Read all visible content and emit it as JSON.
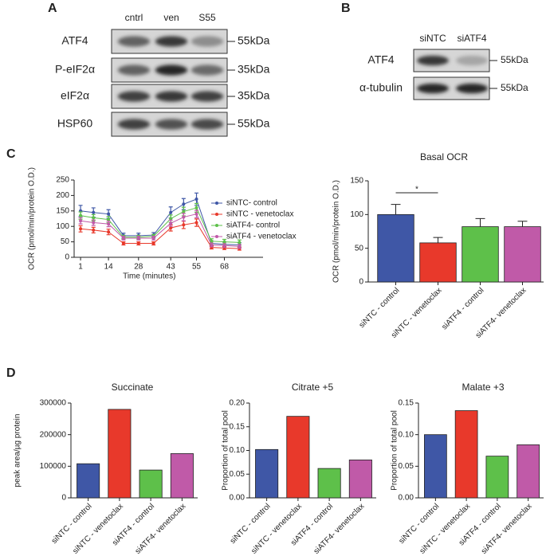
{
  "figure": {
    "panels": [
      "A",
      "B",
      "C",
      "D"
    ]
  },
  "blot_a": {
    "columns": [
      "cntrl",
      "ven",
      "S55"
    ],
    "rows": [
      {
        "label": "ATF4",
        "size": "55kDa"
      },
      {
        "label": "P-eIF2α",
        "size": "35kDa"
      },
      {
        "label": "eIF2α",
        "size": "35kDa"
      },
      {
        "label": "HSP60",
        "size": "55kDa"
      }
    ]
  },
  "blot_b": {
    "columns": [
      "siNTC",
      "siATF4"
    ],
    "rows": [
      {
        "label": "ATF4",
        "size": "55kDa"
      },
      {
        "label": "α-tubulin",
        "size": "55kDa"
      }
    ]
  },
  "chart_data": [
    {
      "type": "line",
      "xlabel": "Time (minutes)",
      "ylabel": "OCR (pmol/min/protein O.D.)",
      "x": [
        1,
        7,
        14,
        21,
        28,
        35,
        43,
        49,
        55,
        62,
        68,
        75
      ],
      "xlim": [
        -2,
        86
      ],
      "xticks": [
        1,
        14,
        28,
        43,
        55,
        68
      ],
      "ylim": [
        0,
        250
      ],
      "yticks": [
        0,
        50,
        100,
        150,
        200,
        250
      ],
      "legend": "upper right",
      "series": [
        {
          "name": "siNTC- control",
          "color": "#3f57a6",
          "values": [
            150,
            145,
            140,
            70,
            70,
            72,
            145,
            172,
            188,
            45,
            42,
            40
          ],
          "errors": [
            18,
            15,
            14,
            8,
            8,
            8,
            18,
            18,
            20,
            8,
            7,
            7
          ]
        },
        {
          "name": "siNTC - venetoclax",
          "color": "#e8392b",
          "values": [
            92,
            88,
            82,
            45,
            45,
            45,
            95,
            105,
            112,
            32,
            30,
            28
          ],
          "errors": [
            10,
            9,
            9,
            5,
            5,
            5,
            10,
            12,
            12,
            5,
            5,
            5
          ]
        },
        {
          "name": "siATF4- control",
          "color": "#5ec04a",
          "values": [
            135,
            128,
            122,
            65,
            65,
            68,
            125,
            148,
            160,
            52,
            50,
            48
          ],
          "errors": [
            12,
            10,
            10,
            6,
            6,
            6,
            12,
            14,
            14,
            8,
            8,
            8
          ]
        },
        {
          "name": "siATF4 - venetoclax",
          "color": "#c05aa8",
          "values": [
            118,
            112,
            108,
            62,
            62,
            62,
            110,
            130,
            140,
            40,
            38,
            35
          ],
          "errors": [
            10,
            9,
            9,
            6,
            6,
            6,
            10,
            12,
            12,
            6,
            6,
            6
          ]
        }
      ]
    },
    {
      "type": "bar",
      "title": "Basal OCR",
      "ylabel": "OCR (pmol/min/protein O.D.)",
      "categories": [
        "siNTC - control",
        "siNTC - venetoclax",
        "siATF4 - control",
        "siATF4- venetoclax"
      ],
      "values": [
        100,
        58,
        82,
        82
      ],
      "errors": [
        15,
        8,
        12,
        8
      ],
      "colors": [
        "#3f57a6",
        "#e8392b",
        "#5ec04a",
        "#c05aa8"
      ],
      "ylim": [
        0,
        150
      ],
      "yticks": [
        0,
        50,
        100,
        150
      ],
      "annotation": "*"
    },
    {
      "type": "bar",
      "title": "Succinate",
      "ylabel": "peak area/µg protein",
      "categories": [
        "siNTC - control",
        "siNTC - venetoclax",
        "siATF4 - control",
        "siATF4- venetoclax"
      ],
      "values": [
        108000,
        280000,
        88000,
        140000
      ],
      "colors": [
        "#3f57a6",
        "#e8392b",
        "#5ec04a",
        "#c05aa8"
      ],
      "ylim": [
        0,
        300000
      ],
      "yticks": [
        0,
        100000,
        200000,
        300000
      ]
    },
    {
      "type": "bar",
      "title": "Citrate +5",
      "ylabel": "Proportion of total pool",
      "categories": [
        "siNTC - control",
        "siNTC - venetoclax",
        "siATF4 - control",
        "siATF4- venetoclax"
      ],
      "values": [
        0.102,
        0.172,
        0.062,
        0.08
      ],
      "colors": [
        "#3f57a6",
        "#e8392b",
        "#5ec04a",
        "#c05aa8"
      ],
      "ylim": [
        0,
        0.2
      ],
      "yticks": [
        {
          "value": 0,
          "label": "0.00"
        },
        {
          "value": 0.05,
          "label": "0.05"
        },
        {
          "value": 0.1,
          "label": "0.10"
        },
        {
          "value": 0.15,
          "label": "0.15"
        },
        {
          "value": 0.2,
          "label": "0.20"
        }
      ]
    },
    {
      "type": "bar",
      "title": "Malate +3",
      "ylabel": "Proportion of total pool",
      "categories": [
        "siNTC - control",
        "siNTC - venetoclax",
        "siATF4 - control",
        "siATF4- venetoclax"
      ],
      "values": [
        0.1,
        0.138,
        0.066,
        0.084
      ],
      "colors": [
        "#3f57a6",
        "#e8392b",
        "#5ec04a",
        "#c05aa8"
      ],
      "ylim": [
        0,
        0.15
      ],
      "yticks": [
        {
          "value": 0,
          "label": "0.00"
        },
        {
          "value": 0.05,
          "label": "0.05"
        },
        {
          "value": 0.1,
          "label": "0.10"
        },
        {
          "value": 0.15,
          "label": "0.15"
        }
      ]
    }
  ]
}
